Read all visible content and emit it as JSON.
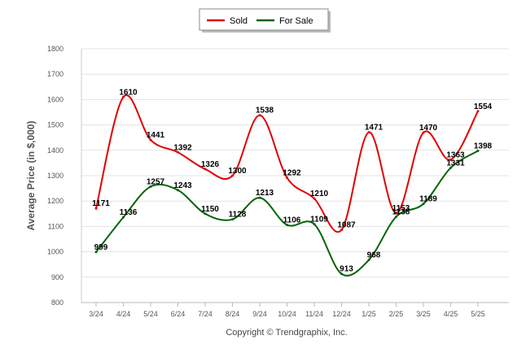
{
  "chart_data": {
    "type": "line",
    "ylabel": "Average Price (in $,000)",
    "footer": "Copyright © Trendgraphix, Inc.",
    "ylim": [
      800,
      1800
    ],
    "yticks": [
      "800",
      "900",
      "1000",
      "1100",
      "1200",
      "1300",
      "1400",
      "1500",
      "1600",
      "1700",
      "1800"
    ],
    "categories": [
      "3/24",
      "4/24",
      "5/24",
      "6/24",
      "7/24",
      "8/24",
      "9/24",
      "10/24",
      "11/24",
      "12/24",
      "1/25",
      "2/25",
      "3/25",
      "4/25",
      "5/25"
    ],
    "grid": true,
    "legend_position": "top-center",
    "series": [
      {
        "name": "Sold",
        "color": "#e00000",
        "values": [
          1171,
          1610,
          1441,
          1392,
          1326,
          1300,
          1538,
          1292,
          1210,
          1087,
          1471,
          1153,
          1470,
          1363,
          1554
        ]
      },
      {
        "name": "For Sale",
        "color": "#006400",
        "values": [
          999,
          1136,
          1257,
          1243,
          1150,
          1128,
          1213,
          1106,
          1109,
          913,
          968,
          1138,
          1189,
          1331,
          1398
        ]
      }
    ]
  }
}
